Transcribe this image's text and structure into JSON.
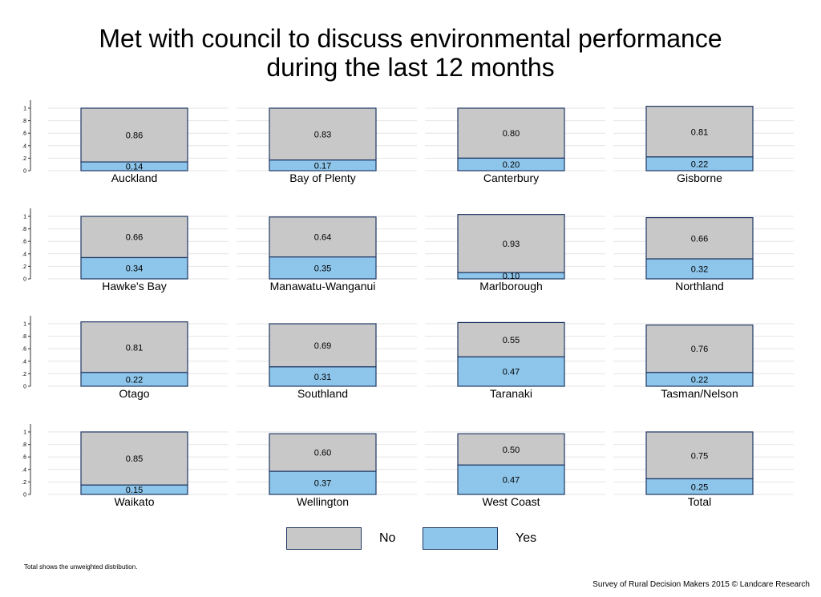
{
  "title": "Met with council to discuss environmental performance during the last 12 months",
  "legend": {
    "no_label": "No",
    "yes_label": "Yes"
  },
  "colors": {
    "no": "#c8c8c8",
    "yes": "#8ec5ea",
    "border": "#1f3763"
  },
  "footnote": "Total shows the unweighted distribution.",
  "credit": "Survey of Rural Decision Makers 2015 © Landcare Research",
  "chart_data": {
    "type": "bar",
    "stacked": true,
    "facets": "4x4",
    "y_ticks": [
      "0",
      ".2",
      ".4",
      ".6",
      ".8",
      "1"
    ],
    "ylim": [
      0,
      1
    ],
    "grid": true,
    "legend_position": "bottom",
    "series": [
      {
        "name": "No"
      },
      {
        "name": "Yes"
      }
    ],
    "panels": [
      {
        "name": "Auckland",
        "no": 0.86,
        "no_label": "0.86",
        "yes": 0.14,
        "yes_label": "0.14"
      },
      {
        "name": "Bay of Plenty",
        "no": 0.83,
        "no_label": "0.83",
        "yes": 0.17,
        "yes_label": "0.17"
      },
      {
        "name": "Canterbury",
        "no": 0.8,
        "no_label": "0.80",
        "yes": 0.2,
        "yes_label": "0.20"
      },
      {
        "name": "Gisborne",
        "no": 0.81,
        "no_label": "0.81",
        "yes": 0.22,
        "yes_label": "0.22"
      },
      {
        "name": "Hawke's Bay",
        "no": 0.66,
        "no_label": "0.66",
        "yes": 0.34,
        "yes_label": "0.34"
      },
      {
        "name": "Manawatu-Wanganui",
        "no": 0.64,
        "no_label": "0.64",
        "yes": 0.35,
        "yes_label": "0.35"
      },
      {
        "name": "Marlborough",
        "no": 0.93,
        "no_label": "0.93",
        "yes": 0.1,
        "yes_label": "0.10"
      },
      {
        "name": "Northland",
        "no": 0.66,
        "no_label": "0.66",
        "yes": 0.32,
        "yes_label": "0.32"
      },
      {
        "name": "Otago",
        "no": 0.81,
        "no_label": "0.81",
        "yes": 0.22,
        "yes_label": "0.22"
      },
      {
        "name": "Southland",
        "no": 0.69,
        "no_label": "0.69",
        "yes": 0.31,
        "yes_label": "0.31"
      },
      {
        "name": "Taranaki",
        "no": 0.55,
        "no_label": "0.55",
        "yes": 0.47,
        "yes_label": "0.47"
      },
      {
        "name": "Tasman/Nelson",
        "no": 0.76,
        "no_label": "0.76",
        "yes": 0.22,
        "yes_label": "0.22"
      },
      {
        "name": "Waikato",
        "no": 0.85,
        "no_label": "0.85",
        "yes": 0.15,
        "yes_label": "0.15"
      },
      {
        "name": "Wellington",
        "no": 0.6,
        "no_label": "0.60",
        "yes": 0.37,
        "yes_label": "0.37"
      },
      {
        "name": "West Coast",
        "no": 0.5,
        "no_label": "0.50",
        "yes": 0.47,
        "yes_label": "0.47"
      },
      {
        "name": "Total",
        "no": 0.75,
        "no_label": "0.75",
        "yes": 0.25,
        "yes_label": "0.25"
      }
    ]
  }
}
